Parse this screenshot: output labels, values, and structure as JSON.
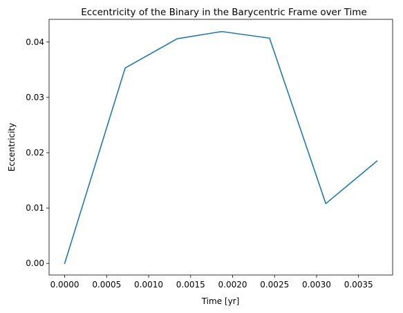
{
  "chart_data": {
    "type": "line",
    "title": "Eccentricity of the Binary in the Barycentric Frame over Time",
    "xlabel": "Time [yr]",
    "ylabel": "Eccentricity",
    "xlim": [
      -0.000186,
      0.003906
    ],
    "ylim": [
      -0.0021,
      0.0441
    ],
    "xticks": [
      0.0,
      0.0005,
      0.001,
      0.0015,
      0.002,
      0.0025,
      0.003,
      0.0035
    ],
    "xtick_labels": [
      "0.0000",
      "0.0005",
      "0.0010",
      "0.0015",
      "0.0020",
      "0.0025",
      "0.0030",
      "0.0035"
    ],
    "yticks": [
      0.0,
      0.01,
      0.02,
      0.03,
      0.04
    ],
    "ytick_labels": [
      "0.00",
      "0.01",
      "0.02",
      "0.03",
      "0.04"
    ],
    "grid": false,
    "series": [
      {
        "color": "#1f77b4",
        "x": [
          0.0,
          0.00072,
          0.00134,
          0.00187,
          0.00244,
          0.00311,
          0.00372
        ],
        "y": [
          0.0,
          0.0353,
          0.0406,
          0.0419,
          0.0407,
          0.0108,
          0.0185
        ]
      }
    ]
  }
}
